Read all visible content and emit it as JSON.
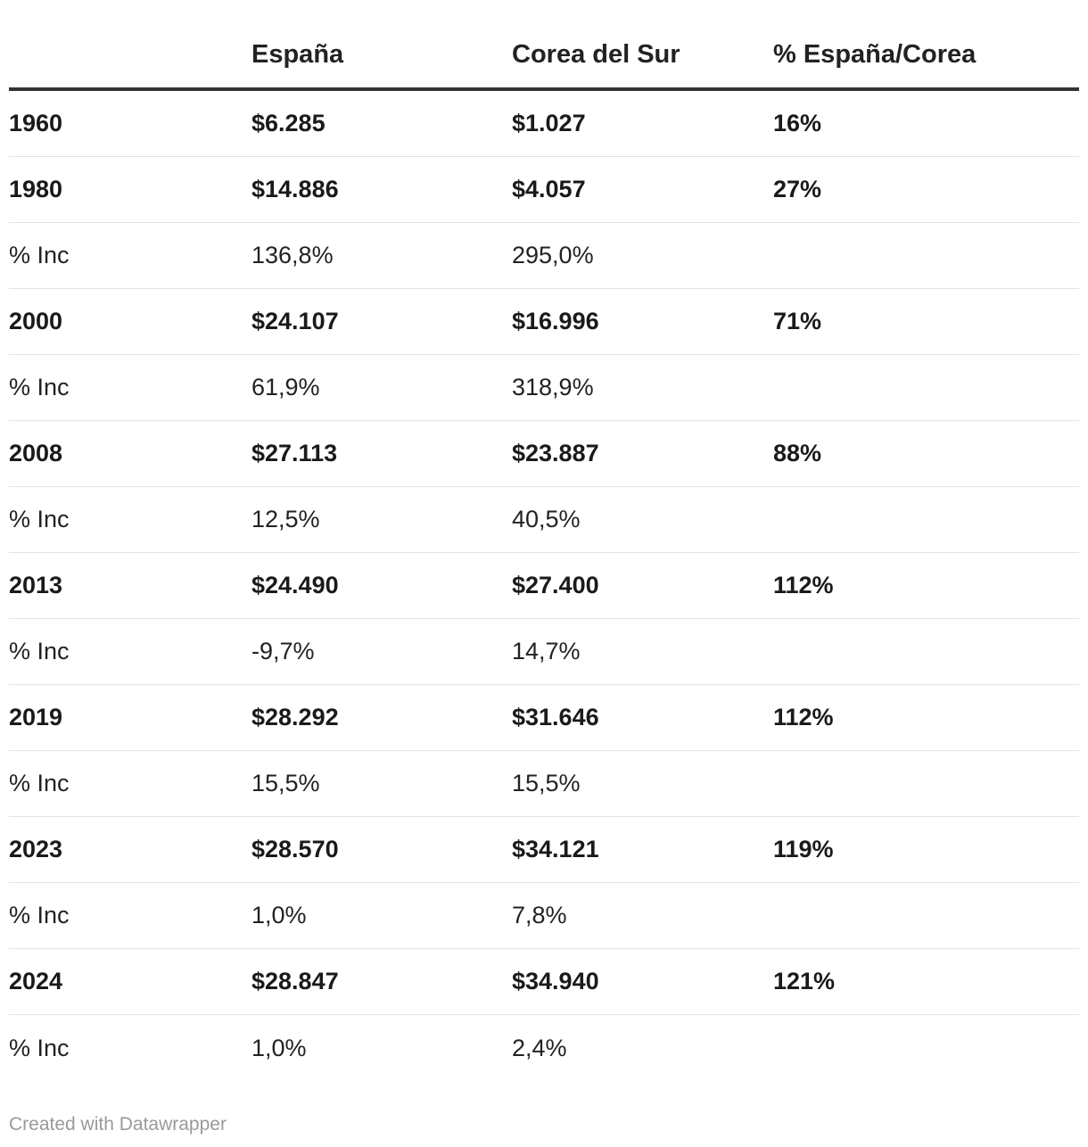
{
  "chart_data": {
    "type": "table",
    "columns": [
      "",
      "España",
      "Corea del Sur",
      "% España/Corea"
    ],
    "rows": [
      {
        "kind": "year",
        "label": "1960",
        "spain": "$6.285",
        "korea": "$1.027",
        "ratio": "16%"
      },
      {
        "kind": "year",
        "label": "1980",
        "spain": "$14.886",
        "korea": "$4.057",
        "ratio": "27%"
      },
      {
        "kind": "inc",
        "label": "% Inc",
        "spain": "136,8%",
        "korea": "295,0%",
        "ratio": ""
      },
      {
        "kind": "year",
        "label": "2000",
        "spain": "$24.107",
        "korea": "$16.996",
        "ratio": "71%"
      },
      {
        "kind": "inc",
        "label": "% Inc",
        "spain": "61,9%",
        "korea": "318,9%",
        "ratio": ""
      },
      {
        "kind": "year",
        "label": "2008",
        "spain": "$27.113",
        "korea": "$23.887",
        "ratio": "88%"
      },
      {
        "kind": "inc",
        "label": "% Inc",
        "spain": "12,5%",
        "korea": "40,5%",
        "ratio": ""
      },
      {
        "kind": "year",
        "label": "2013",
        "spain": "$24.490",
        "korea": "$27.400",
        "ratio": "112%"
      },
      {
        "kind": "inc",
        "label": "% Inc",
        "spain": "-9,7%",
        "korea": "14,7%",
        "ratio": ""
      },
      {
        "kind": "year",
        "label": "2019",
        "spain": "$28.292",
        "korea": "$31.646",
        "ratio": "112%"
      },
      {
        "kind": "inc",
        "label": "% Inc",
        "spain": "15,5%",
        "korea": "15,5%",
        "ratio": ""
      },
      {
        "kind": "year",
        "label": "2023",
        "spain": "$28.570",
        "korea": "$34.121",
        "ratio": "119%"
      },
      {
        "kind": "inc",
        "label": "% Inc",
        "spain": "1,0%",
        "korea": "7,8%",
        "ratio": ""
      },
      {
        "kind": "year",
        "label": "2024",
        "spain": "$28.847",
        "korea": "$34.940",
        "ratio": "121%"
      },
      {
        "kind": "inc",
        "label": "% Inc",
        "spain": "1,0%",
        "korea": "2,4%",
        "ratio": ""
      }
    ]
  },
  "footer": {
    "credit": "Created with Datawrapper"
  },
  "colors": {
    "text": "#1a1a1a",
    "header_rule": "#333333",
    "row_rule": "#e3e3e3",
    "footer": "#9a9a9a"
  }
}
